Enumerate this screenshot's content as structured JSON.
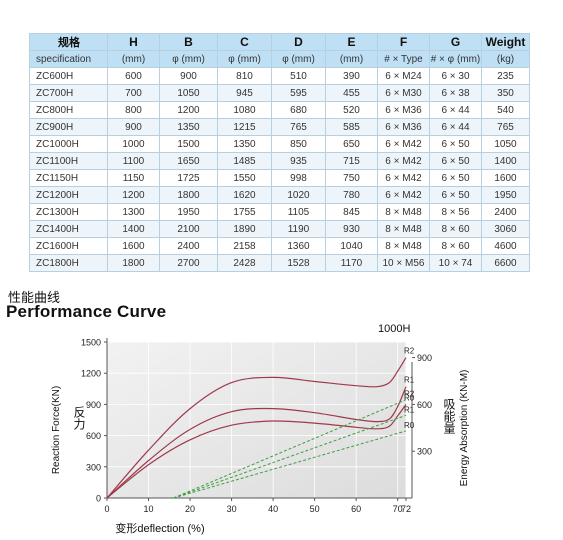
{
  "table": {
    "header": [
      "规格",
      "H",
      "B",
      "C",
      "D",
      "E",
      "F",
      "G",
      "Weight"
    ],
    "subheader": [
      "specification",
      "(mm)",
      "φ (mm)",
      "φ (mm)",
      "φ (mm)",
      "(mm)",
      "# × Type",
      "# × φ (mm)",
      "(kg)"
    ],
    "rows": [
      [
        "ZC600H",
        "600",
        "900",
        "810",
        "510",
        "390",
        "6 × M24",
        "6 × 30",
        "235"
      ],
      [
        "ZC700H",
        "700",
        "1050",
        "945",
        "595",
        "455",
        "6 × M30",
        "6 × 38",
        "350"
      ],
      [
        "ZC800H",
        "800",
        "1200",
        "1080",
        "680",
        "520",
        "6 × M36",
        "6 × 44",
        "540"
      ],
      [
        "ZC900H",
        "900",
        "1350",
        "1215",
        "765",
        "585",
        "6 × M36",
        "6 × 44",
        "765"
      ],
      [
        "ZC1000H",
        "1000",
        "1500",
        "1350",
        "850",
        "650",
        "6 × M42",
        "6 × 50",
        "1050"
      ],
      [
        "ZC1100H",
        "1100",
        "1650",
        "1485",
        "935",
        "715",
        "6 × M42",
        "6 × 50",
        "1400"
      ],
      [
        "ZC1150H",
        "1150",
        "1725",
        "1550",
        "998",
        "750",
        "6 × M42",
        "6 × 50",
        "1600"
      ],
      [
        "ZC1200H",
        "1200",
        "1800",
        "1620",
        "1020",
        "780",
        "6 × M42",
        "6 × 50",
        "1950"
      ],
      [
        "ZC1300H",
        "1300",
        "1950",
        "1755",
        "1105",
        "845",
        "8 × M48",
        "8 × 56",
        "2400"
      ],
      [
        "ZC1400H",
        "1400",
        "2100",
        "1890",
        "1190",
        "930",
        "8 × M48",
        "8 × 60",
        "3060"
      ],
      [
        "ZC1600H",
        "1600",
        "2400",
        "2158",
        "1360",
        "1040",
        "8 × M48",
        "8 × 60",
        "4600"
      ],
      [
        "ZC1800H",
        "1800",
        "2700",
        "2428",
        "1528",
        "1170",
        "10 × M56",
        "10 × 74",
        "6600"
      ]
    ]
  },
  "section": {
    "title_cn": "性能曲线",
    "title_en": "Performance Curve"
  },
  "chart_data": {
    "type": "line",
    "title": "1000H",
    "xlabel": "变形deflection (%)",
    "ylabel_left": "Reaction Force(KN)",
    "ylabel_left_cn": "反力",
    "ylabel_right": "Energy Absorption (KN-M)",
    "ylabel_right_cn": "吸能量",
    "x_ticks": [
      "0",
      "10",
      "20",
      "30",
      "40",
      "50",
      "60",
      "70",
      "72"
    ],
    "y_left_ticks": [
      "0",
      "300",
      "600",
      "900",
      "1200",
      "1500"
    ],
    "y_right_ticks": [
      "300",
      "600",
      "900"
    ],
    "xlim": [
      0,
      72
    ],
    "ylim_left": [
      0,
      1500
    ],
    "ylim_right": [
      0,
      1000
    ],
    "grid": true,
    "colors": {
      "reaction": "#a0384c",
      "energy": "#3f9e3f",
      "plot_bg": "#e4e4e4"
    },
    "reaction_series": [
      {
        "name": "R2",
        "x": [
          0,
          10,
          20,
          30,
          40,
          50,
          60,
          65,
          68,
          70,
          72
        ],
        "y": [
          0,
          460,
          860,
          1110,
          1160,
          1120,
          1080,
          1070,
          1110,
          1220,
          1350
        ]
      },
      {
        "name": "R1",
        "x": [
          0,
          10,
          20,
          30,
          40,
          50,
          60,
          65,
          68,
          70,
          72
        ],
        "y": [
          0,
          360,
          660,
          830,
          860,
          820,
          755,
          735,
          760,
          880,
          1070
        ]
      },
      {
        "name": "R0",
        "x": [
          0,
          10,
          20,
          30,
          40,
          50,
          60,
          65,
          68,
          70,
          72
        ],
        "y": [
          0,
          320,
          560,
          700,
          740,
          720,
          680,
          665,
          690,
          790,
          900
        ]
      }
    ],
    "energy_series": [
      {
        "name": "R2",
        "x": [
          16,
          72
        ],
        "y": [
          0,
          630
        ]
      },
      {
        "name": "R1",
        "x": [
          16,
          72
        ],
        "y": [
          0,
          530
        ]
      },
      {
        "name": "R0",
        "x": [
          16,
          72
        ],
        "y": [
          0,
          430
        ]
      }
    ]
  }
}
